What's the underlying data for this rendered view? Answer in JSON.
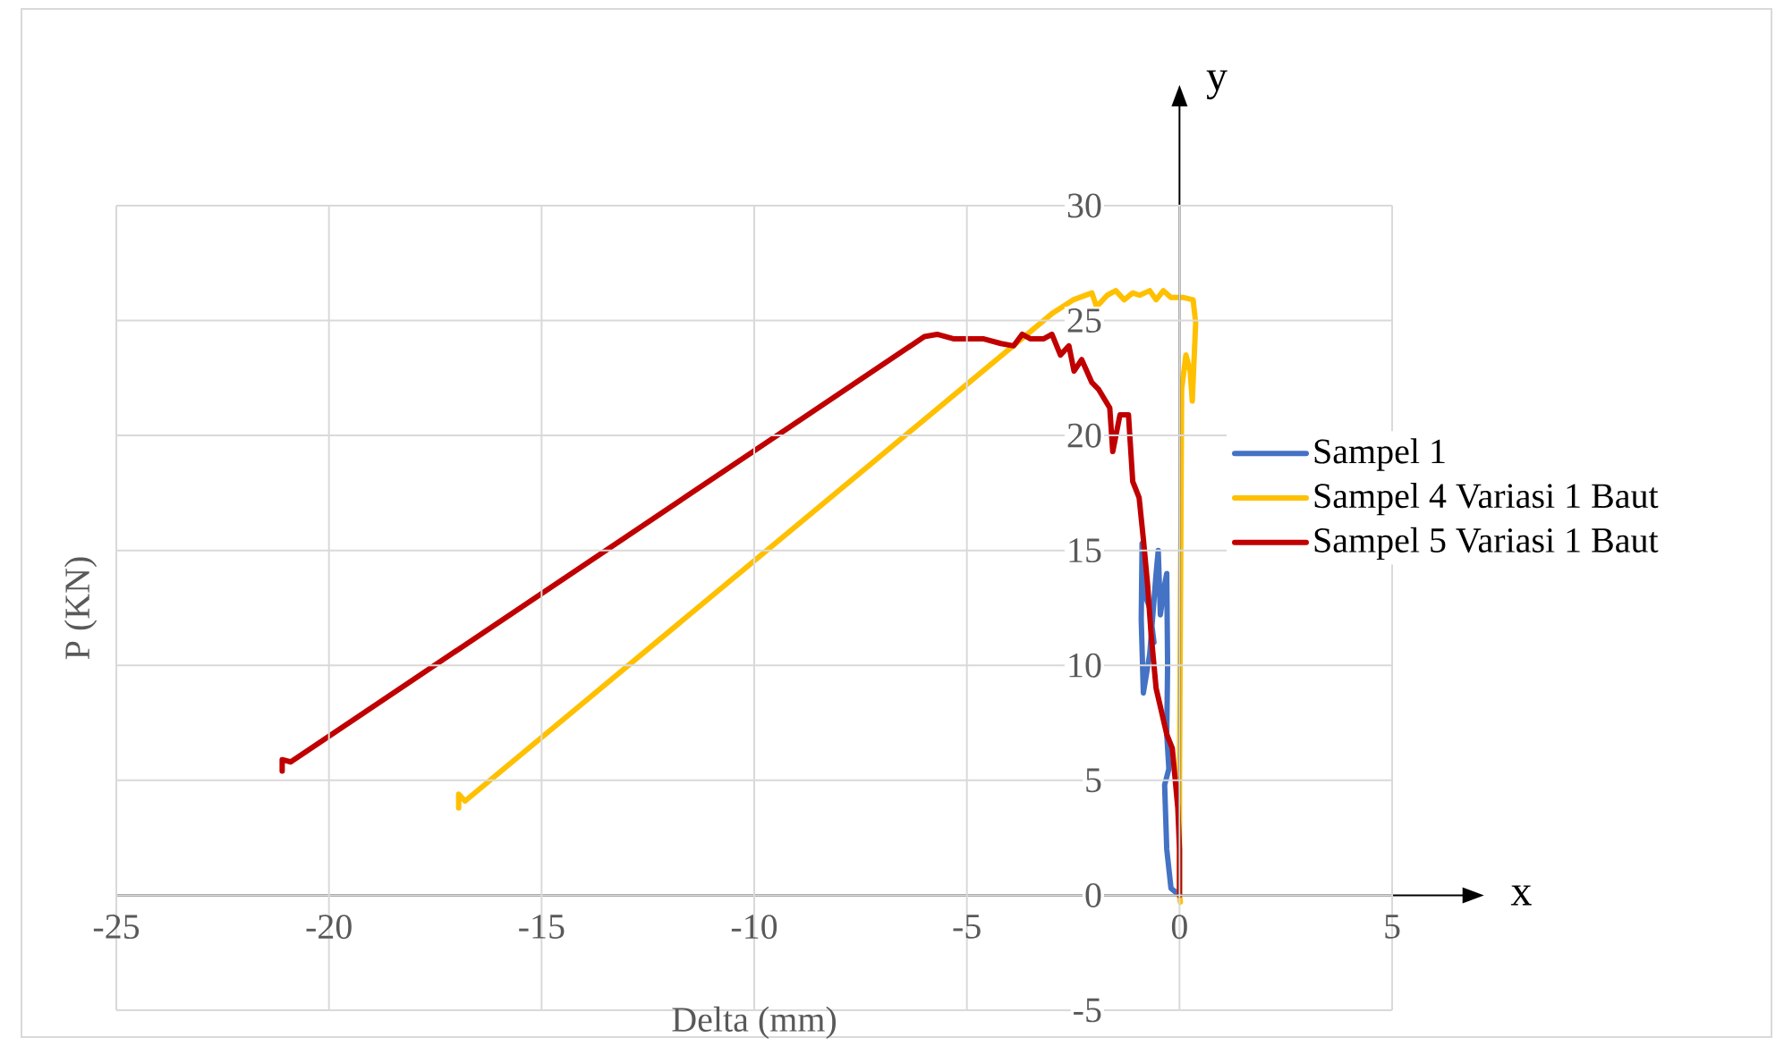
{
  "chart_data": {
    "type": "line",
    "xlabel": "Delta (mm)",
    "ylabel": "P (KN)",
    "xlim": [
      -25,
      5
    ],
    "ylim": [
      -5,
      30
    ],
    "xticks": [
      -25,
      -20,
      -15,
      -10,
      -5,
      0,
      5
    ],
    "yticks": [
      -5,
      0,
      5,
      10,
      15,
      20,
      25,
      30
    ],
    "grid": true,
    "legend": "right",
    "annotations": [
      "x",
      "y"
    ],
    "series": [
      {
        "name": "Sampel 1",
        "color": "#4472c4",
        "x": [
          0,
          -0.2,
          -0.3,
          -0.35,
          -0.25,
          -0.3,
          -0.28,
          -0.3,
          -0.35,
          -0.45,
          -0.5,
          -0.55,
          -0.7,
          -0.85,
          -0.9,
          -0.88,
          -0.8,
          -0.7,
          -0.6
        ],
        "values": [
          0,
          0.3,
          2.0,
          4.8,
          5.5,
          7.0,
          10,
          14.0,
          13.5,
          12.2,
          15.0,
          14.0,
          10.5,
          8.8,
          12,
          15.3,
          13,
          12.5,
          11
        ]
      },
      {
        "name": "Sampel 4 Variasi 1 Baut",
        "color": "#ffc000",
        "x": [
          -16.95,
          -16.95,
          -16.8,
          -3.0,
          -2.5,
          -2.06,
          -1.95,
          -1.7,
          -1.5,
          -1.3,
          -1.1,
          -0.94,
          -0.7,
          -0.55,
          -0.38,
          -0.2,
          0.1,
          0.32,
          0.38,
          0.3,
          0.25,
          0.15,
          0.05,
          0.0,
          0.0,
          0.02
        ],
        "values": [
          3.8,
          4.4,
          4.1,
          25.3,
          25.9,
          26.2,
          25.6,
          26.1,
          26.3,
          25.9,
          26.2,
          26.1,
          26.3,
          25.9,
          26.3,
          26.0,
          26.0,
          25.9,
          24.9,
          21.5,
          22.8,
          23.5,
          22.0,
          5,
          0,
          -0.3
        ]
      },
      {
        "name": "Sampel 5 Variasi 1 Baut",
        "color": "#c00000",
        "x": [
          -21.1,
          -21.1,
          -20.9,
          -6.0,
          -5.7,
          -5.3,
          -4.6,
          -4.2,
          -3.9,
          -3.7,
          -3.5,
          -3.2,
          -3.0,
          -2.8,
          -2.6,
          -2.48,
          -2.3,
          -2.06,
          -1.9,
          -1.64,
          -1.57,
          -1.4,
          -1.2,
          -1.1,
          -0.95,
          -0.85,
          -0.75,
          -0.67,
          -0.55,
          -0.45,
          -0.3,
          -0.17,
          -0.1,
          -0.04,
          0,
          0
        ],
        "values": [
          5.4,
          5.9,
          5.8,
          24.3,
          24.4,
          24.2,
          24.2,
          24.0,
          23.9,
          24.4,
          24.2,
          24.2,
          24.4,
          23.5,
          23.9,
          22.8,
          23.3,
          22.3,
          22.0,
          21.2,
          19.3,
          20.9,
          20.9,
          18.0,
          17.3,
          15.5,
          13.5,
          11.4,
          9.0,
          8.2,
          7.0,
          6.4,
          5.0,
          3.8,
          2.0,
          0
        ]
      }
    ]
  }
}
